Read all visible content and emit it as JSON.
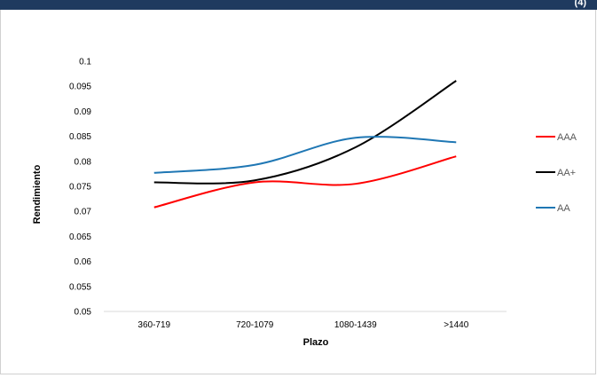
{
  "header": {
    "text": "(4)"
  },
  "chart_data": {
    "type": "line",
    "title": "",
    "xlabel": "Plazo",
    "ylabel": "Rendimiento",
    "categories": [
      "360-719",
      "720-1079",
      "1080-1439",
      ">1440"
    ],
    "ylim": [
      0.05,
      0.1
    ],
    "yticks": [
      "0.05",
      "0.055",
      "0.06",
      "0.065",
      "0.07",
      "0.075",
      "0.08",
      "0.085",
      "0.09",
      "0.095",
      "0.1"
    ],
    "smooth": true,
    "grid": false,
    "legend_position": "right",
    "series": [
      {
        "name": "AAA",
        "color": "#ff0000",
        "values": [
          0.0708,
          0.0758,
          0.0755,
          0.081
        ]
      },
      {
        "name": "AA+",
        "color": "#000000",
        "values": [
          0.0758,
          0.0762,
          0.0828,
          0.0961
        ]
      },
      {
        "name": "AA",
        "color": "#1f77b4",
        "values": [
          0.0777,
          0.0793,
          0.0847,
          0.0838
        ]
      }
    ]
  }
}
